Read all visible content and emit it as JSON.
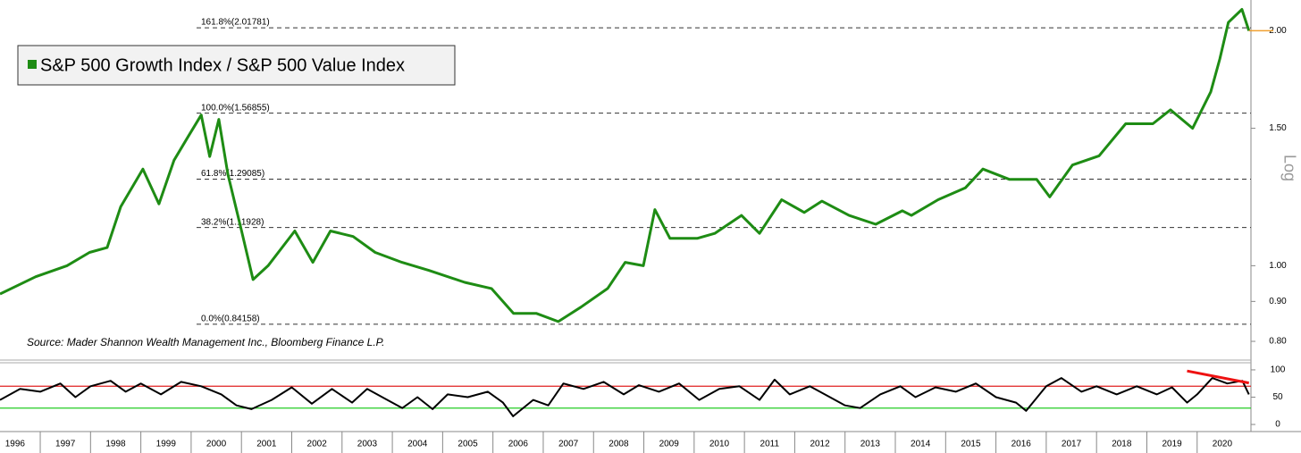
{
  "chart_data": [
    {
      "type": "line",
      "log_scale": true,
      "scale_label": "Log",
      "legend": "top-left",
      "source": "Source: Mader Shannon Wealth Management Inc., Bloomberg Finance L.P.",
      "x": [
        1996.2,
        1996.91,
        1997.53,
        1997.98,
        1998.33,
        1998.6,
        1999.04,
        1999.36,
        1999.66,
        1999.93,
        2000.2,
        2000.37,
        2000.55,
        2000.73,
        2001.0,
        2001.23,
        2001.53,
        2002.06,
        2002.42,
        2002.77,
        2003.22,
        2003.66,
        2004.19,
        2004.73,
        2005.44,
        2005.97,
        2006.41,
        2006.86,
        2007.3,
        2007.75,
        2008.28,
        2008.63,
        2008.99,
        2009.22,
        2009.52,
        2010.06,
        2010.41,
        2010.94,
        2011.3,
        2011.74,
        2012.19,
        2012.54,
        2013.08,
        2013.61,
        2014.14,
        2014.32,
        2014.85,
        2015.39,
        2015.74,
        2016.27,
        2016.81,
        2017.07,
        2017.52,
        2018.05,
        2018.58,
        2019.12,
        2019.47,
        2019.91,
        2020.27,
        2020.45,
        2020.62,
        2020.89,
        2021.03
      ],
      "series": [
        {
          "name": "S&P 500 Growth Index / S&P 500 Value Index",
          "color": "#1e8c14",
          "values": [
            0.92,
            0.968,
            1.0,
            1.04,
            1.055,
            1.19,
            1.33,
            1.2,
            1.365,
            1.46,
            1.56,
            1.38,
            1.54,
            1.31,
            1.11,
            0.96,
            1.0,
            1.108,
            1.01,
            1.108,
            1.09,
            1.04,
            1.01,
            0.986,
            0.952,
            0.935,
            0.869,
            0.869,
            0.848,
            0.885,
            0.935,
            1.01,
            1.0,
            1.18,
            1.084,
            1.084,
            1.1,
            1.16,
            1.1,
            1.215,
            1.17,
            1.21,
            1.16,
            1.13,
            1.176,
            1.16,
            1.215,
            1.258,
            1.33,
            1.29,
            1.29,
            1.225,
            1.346,
            1.383,
            1.52,
            1.52,
            1.584,
            1.5,
            1.67,
            1.84,
            2.05,
            2.13,
            2.0
          ]
        }
      ],
      "last_value_color": "#f0a030",
      "xlim": [
        1996.2,
        2021.07
      ],
      "ylim": [
        0.763,
        2.19
      ],
      "yticks": [
        {
          "value": 0.8,
          "label": "0.80"
        },
        {
          "value": 0.9,
          "label": "0.90"
        },
        {
          "value": 1.0,
          "label": "1.00"
        },
        {
          "value": 1.5,
          "label": "1.50"
        },
        {
          "value": 2.0,
          "label": "2.00"
        }
      ],
      "levels": [
        {
          "label": "161.8%(2.01781)",
          "value": 2.01781
        },
        {
          "label": "100.0%(1.56855)",
          "value": 1.56855
        },
        {
          "label": "61.8%(1.29085)",
          "value": 1.29085
        },
        {
          "label": "38.2%(1.11928)",
          "value": 1.11928
        },
        {
          "label": "0.0%(0.84158)",
          "value": 0.84158
        }
      ]
    },
    {
      "type": "line",
      "color": "#000000",
      "x": [
        1996.2,
        1996.6,
        1997.0,
        1997.4,
        1997.7,
        1998.0,
        1998.4,
        1998.7,
        1999.0,
        1999.4,
        1999.8,
        2000.2,
        2000.6,
        2000.9,
        2001.2,
        2001.6,
        2002.0,
        2002.4,
        2002.8,
        2003.2,
        2003.5,
        2003.9,
        2004.2,
        2004.5,
        2004.8,
        2005.1,
        2005.5,
        2005.9,
        2006.2,
        2006.4,
        2006.8,
        2007.1,
        2007.4,
        2007.8,
        2008.2,
        2008.6,
        2008.9,
        2009.3,
        2009.7,
        2010.1,
        2010.5,
        2010.9,
        2011.3,
        2011.6,
        2011.9,
        2012.3,
        2012.7,
        2013.0,
        2013.3,
        2013.7,
        2014.1,
        2014.4,
        2014.8,
        2015.2,
        2015.6,
        2016.0,
        2016.4,
        2016.6,
        2017.0,
        2017.3,
        2017.7,
        2018.0,
        2018.4,
        2018.8,
        2019.2,
        2019.5,
        2019.8,
        2020.0,
        2020.3,
        2020.6,
        2020.9,
        2021.03
      ],
      "values": [
        45,
        65,
        60,
        75,
        50,
        70,
        80,
        60,
        75,
        55,
        78,
        70,
        55,
        35,
        28,
        45,
        68,
        38,
        65,
        40,
        65,
        45,
        30,
        50,
        28,
        55,
        50,
        60,
        40,
        15,
        45,
        35,
        75,
        65,
        78,
        55,
        72,
        60,
        75,
        45,
        65,
        70,
        45,
        82,
        55,
        70,
        50,
        35,
        30,
        55,
        70,
        50,
        68,
        60,
        75,
        50,
        40,
        25,
        70,
        85,
        60,
        70,
        55,
        70,
        55,
        68,
        40,
        55,
        85,
        75,
        80,
        55
      ],
      "levels": [
        {
          "value": 70,
          "color": "#e02020"
        },
        {
          "value": 30,
          "color": "#22cc22"
        }
      ],
      "trend": {
        "x": [
          2019.8,
          2021.03
        ],
        "values": [
          98,
          76
        ],
        "color": "#ee1111"
      },
      "xlim": [
        1996.2,
        2021.07
      ],
      "ylim": [
        -13,
        113
      ],
      "yticks": [
        0,
        50,
        100
      ],
      "xticks": [
        1996,
        1997,
        1998,
        1999,
        2000,
        2001,
        2002,
        2003,
        2004,
        2005,
        2006,
        2007,
        2008,
        2009,
        2010,
        2011,
        2012,
        2013,
        2014,
        2015,
        2016,
        2017,
        2018,
        2019,
        2020
      ]
    }
  ]
}
